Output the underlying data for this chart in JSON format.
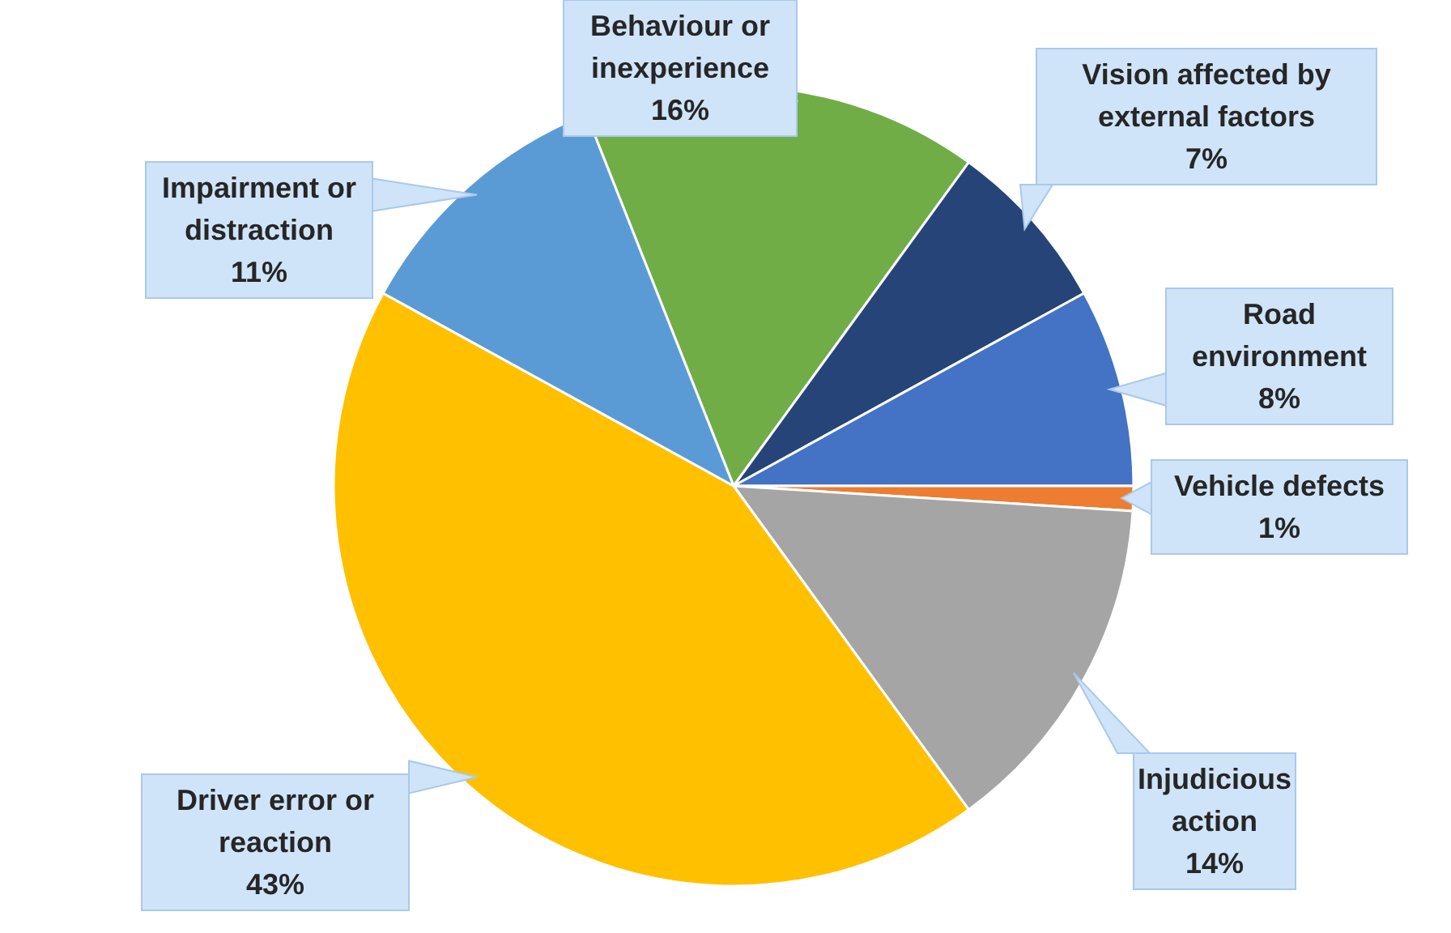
{
  "chart_data": {
    "type": "pie",
    "categories": [
      "Behaviour or inexperience",
      "Vision affected by external factors",
      "Road environment",
      "Vehicle defects",
      "Injudicious action",
      "Driver error or reaction",
      "Impairment or distraction"
    ],
    "values": [
      16,
      7,
      8,
      1,
      14,
      43,
      11
    ],
    "value_labels": [
      "16%",
      "7%",
      "8%",
      "1%",
      "14%",
      "43%",
      "11%"
    ],
    "colors": [
      "#70ad47",
      "#264478",
      "#4472c4",
      "#ed7d31",
      "#a5a5a5",
      "#ffc000",
      "#5b9bd5"
    ]
  }
}
